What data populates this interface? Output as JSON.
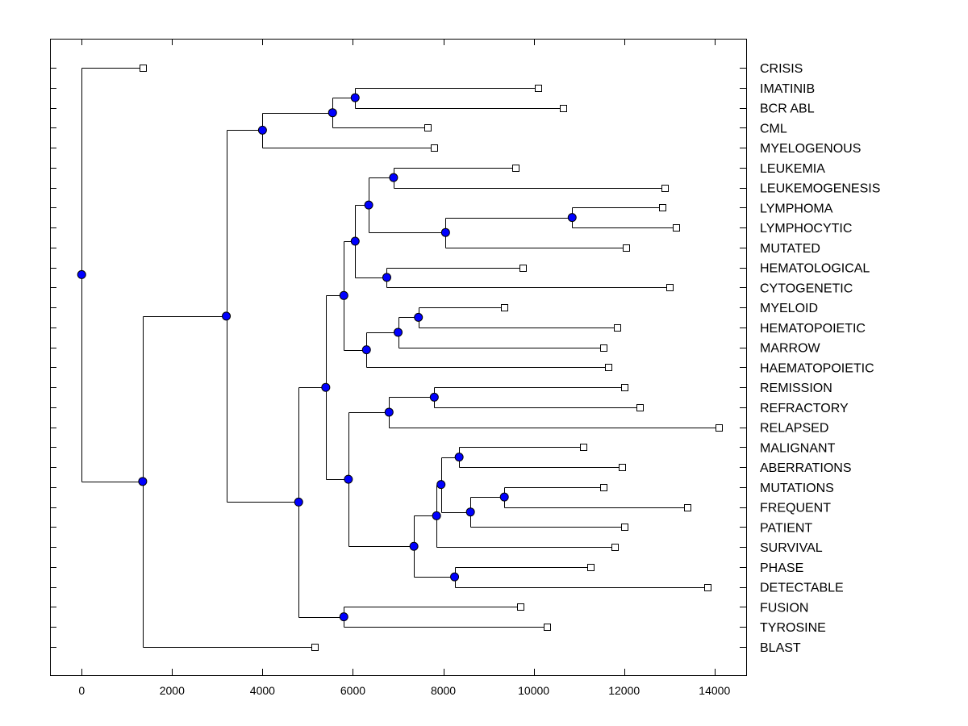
{
  "chart_data": {
    "type": "dendrogram",
    "title": "",
    "xlabel": "",
    "ylabel": "",
    "xlim": [
      -700,
      14700
    ],
    "x_ticks": [
      0,
      2000,
      4000,
      6000,
      8000,
      10000,
      12000,
      14000
    ],
    "grid": false,
    "leaves": [
      {
        "id": "L1",
        "label": "CRISIS",
        "x": 1350
      },
      {
        "id": "L2",
        "label": "IMATINIB",
        "x": 10100
      },
      {
        "id": "L3",
        "label": "BCR ABL",
        "x": 10650
      },
      {
        "id": "L4",
        "label": "CML",
        "x": 7650
      },
      {
        "id": "L5",
        "label": "MYELOGENOUS",
        "x": 7800
      },
      {
        "id": "L6",
        "label": "LEUKEMIA",
        "x": 9600
      },
      {
        "id": "L7",
        "label": "LEUKEMOGENESIS",
        "x": 12900
      },
      {
        "id": "L8",
        "label": "LYMPHOMA",
        "x": 12850
      },
      {
        "id": "L9",
        "label": "LYMPHOCYTIC",
        "x": 13150
      },
      {
        "id": "L10",
        "label": "MUTATED",
        "x": 12050
      },
      {
        "id": "L11",
        "label": "HEMATOLOGICAL",
        "x": 9750
      },
      {
        "id": "L12",
        "label": "CYTOGENETIC",
        "x": 13000
      },
      {
        "id": "L13",
        "label": "MYELOID",
        "x": 9350
      },
      {
        "id": "L14",
        "label": "HEMATOPOIETIC",
        "x": 11850
      },
      {
        "id": "L15",
        "label": "MARROW",
        "x": 11550
      },
      {
        "id": "L16",
        "label": "HAEMATOPOIETIC",
        "x": 11650
      },
      {
        "id": "L17",
        "label": "REMISSION",
        "x": 12000
      },
      {
        "id": "L18",
        "label": "REFRACTORY",
        "x": 12350
      },
      {
        "id": "L19",
        "label": "RELAPSED",
        "x": 14100
      },
      {
        "id": "L20",
        "label": "MALIGNANT",
        "x": 11100
      },
      {
        "id": "L21",
        "label": "ABERRATIONS",
        "x": 11950
      },
      {
        "id": "L22",
        "label": "MUTATIONS",
        "x": 11550
      },
      {
        "id": "L23",
        "label": "FREQUENT",
        "x": 13400
      },
      {
        "id": "L24",
        "label": "PATIENT",
        "x": 12000
      },
      {
        "id": "L25",
        "label": "SURVIVAL",
        "x": 11800
      },
      {
        "id": "L26",
        "label": "PHASE",
        "x": 11250
      },
      {
        "id": "L27",
        "label": "DETECTABLE",
        "x": 13850
      },
      {
        "id": "L28",
        "label": "FUSION",
        "x": 9700
      },
      {
        "id": "L29",
        "label": "TYROSINE",
        "x": 10300
      },
      {
        "id": "L30",
        "label": "BLAST",
        "x": 5150
      }
    ],
    "nodes": [
      {
        "id": "N1",
        "x": 6050,
        "children": [
          "L2",
          "L3"
        ]
      },
      {
        "id": "N2",
        "x": 5550,
        "children": [
          "N1",
          "L4"
        ]
      },
      {
        "id": "N3",
        "x": 4000,
        "children": [
          "N2",
          "L5"
        ]
      },
      {
        "id": "N4",
        "x": 6900,
        "children": [
          "L6",
          "L7"
        ]
      },
      {
        "id": "N5",
        "x": 10850,
        "children": [
          "L8",
          "L9"
        ]
      },
      {
        "id": "N6",
        "x": 8050,
        "children": [
          "N5",
          "L10"
        ]
      },
      {
        "id": "N7",
        "x": 6350,
        "children": [
          "N4",
          "N6"
        ]
      },
      {
        "id": "N8",
        "x": 6750,
        "children": [
          "L11",
          "L12"
        ]
      },
      {
        "id": "N9",
        "x": 6050,
        "children": [
          "N7",
          "N8"
        ]
      },
      {
        "id": "N10",
        "x": 7450,
        "children": [
          "L13",
          "L14"
        ]
      },
      {
        "id": "N11",
        "x": 7000,
        "children": [
          "N10",
          "L15"
        ]
      },
      {
        "id": "N12",
        "x": 6300,
        "children": [
          "N11",
          "L16"
        ]
      },
      {
        "id": "N13",
        "x": 5800,
        "children": [
          "N9",
          "N12"
        ]
      },
      {
        "id": "N14",
        "x": 7800,
        "children": [
          "L17",
          "L18"
        ]
      },
      {
        "id": "N15",
        "x": 6800,
        "children": [
          "N14",
          "L19"
        ]
      },
      {
        "id": "N16",
        "x": 8350,
        "children": [
          "L20",
          "L21"
        ]
      },
      {
        "id": "N17",
        "x": 9350,
        "children": [
          "L22",
          "L23"
        ]
      },
      {
        "id": "N18",
        "x": 8600,
        "children": [
          "N17",
          "L24"
        ]
      },
      {
        "id": "N19",
        "x": 7950,
        "children": [
          "N16",
          "N18"
        ]
      },
      {
        "id": "N20",
        "x": 7850,
        "children": [
          "N19",
          "L25"
        ]
      },
      {
        "id": "N21",
        "x": 8250,
        "children": [
          "L26",
          "L27"
        ]
      },
      {
        "id": "N22",
        "x": 7350,
        "children": [
          "N20",
          "N21"
        ]
      },
      {
        "id": "N23",
        "x": 5900,
        "children": [
          "N15",
          "N22"
        ]
      },
      {
        "id": "N24",
        "x": 5400,
        "children": [
          "N13",
          "N23"
        ]
      },
      {
        "id": "N25",
        "x": 5800,
        "children": [
          "L28",
          "L29"
        ]
      },
      {
        "id": "N26",
        "x": 4800,
        "children": [
          "N24",
          "N25"
        ]
      },
      {
        "id": "N27",
        "x": 3200,
        "children": [
          "N3",
          "N26"
        ]
      },
      {
        "id": "N28",
        "x": 1350,
        "children": [
          "N27",
          "L30"
        ]
      },
      {
        "id": "N29",
        "x": 0,
        "children": [
          "L1",
          "N28"
        ]
      }
    ]
  }
}
